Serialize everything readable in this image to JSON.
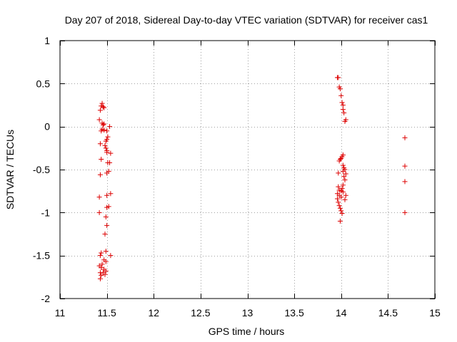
{
  "chart_data": {
    "type": "scatter",
    "title": "Day 207 of 2018, Sidereal Day-to-day VTEC variation (SDTVAR) for receiver cas1",
    "xlabel": "GPS time / hours",
    "ylabel": "SDTVAR / TECUs",
    "xlim": [
      11,
      15
    ],
    "ylim": [
      -2,
      1
    ],
    "xticks": [
      11,
      11.5,
      12,
      12.5,
      13,
      13.5,
      14,
      14.5,
      15
    ],
    "xtick_labels": [
      "11",
      "11.5",
      "12",
      "12.5",
      "13",
      "13.5",
      "14",
      "14.5",
      "15"
    ],
    "yticks": [
      -2,
      -1.5,
      -1,
      -0.5,
      0,
      0.5,
      1
    ],
    "ytick_labels": [
      "-2",
      "-1.5",
      "-1",
      "-0.5",
      "0",
      "0.5",
      "1"
    ],
    "grid": true,
    "marker": "+",
    "color": "#dd0000",
    "series": [
      {
        "name": "cas1",
        "points": [
          [
            11.45,
            0.27
          ],
          [
            11.44,
            0.24
          ],
          [
            11.46,
            0.23
          ],
          [
            11.47,
            0.22
          ],
          [
            11.43,
            0.19
          ],
          [
            11.42,
            0.08
          ],
          [
            11.45,
            0.04
          ],
          [
            11.47,
            0.03
          ],
          [
            11.46,
            0.02
          ],
          [
            11.53,
            0.0
          ],
          [
            11.45,
            -0.03
          ],
          [
            11.47,
            -0.04
          ],
          [
            11.44,
            -0.05
          ],
          [
            11.5,
            -0.05
          ],
          [
            11.51,
            -0.12
          ],
          [
            11.5,
            -0.15
          ],
          [
            11.49,
            -0.17
          ],
          [
            11.43,
            -0.2
          ],
          [
            11.48,
            -0.22
          ],
          [
            11.49,
            -0.25
          ],
          [
            11.5,
            -0.28
          ],
          [
            11.5,
            -0.3
          ],
          [
            11.54,
            -0.31
          ],
          [
            11.44,
            -0.38
          ],
          [
            11.51,
            -0.42
          ],
          [
            11.53,
            -0.42
          ],
          [
            11.52,
            -0.52
          ],
          [
            11.5,
            -0.54
          ],
          [
            11.43,
            -0.56
          ],
          [
            11.54,
            -0.78
          ],
          [
            11.5,
            -0.8
          ],
          [
            11.42,
            -0.82
          ],
          [
            11.52,
            -0.93
          ],
          [
            11.5,
            -0.94
          ],
          [
            11.42,
            -1.0
          ],
          [
            11.49,
            -1.05
          ],
          [
            11.5,
            -1.15
          ],
          [
            11.48,
            -1.25
          ],
          [
            11.49,
            -1.45
          ],
          [
            11.44,
            -1.47
          ],
          [
            11.43,
            -1.5
          ],
          [
            11.54,
            -1.5
          ],
          [
            11.47,
            -1.55
          ],
          [
            11.49,
            -1.57
          ],
          [
            11.45,
            -1.6
          ],
          [
            11.42,
            -1.62
          ],
          [
            11.44,
            -1.64
          ],
          [
            11.47,
            -1.66
          ],
          [
            11.49,
            -1.68
          ],
          [
            11.43,
            -1.7
          ],
          [
            11.46,
            -1.7
          ],
          [
            11.48,
            -1.72
          ],
          [
            11.44,
            -1.73
          ],
          [
            11.43,
            -1.77
          ],
          [
            13.97,
            0.57
          ],
          [
            13.96,
            0.57
          ],
          [
            13.98,
            0.46
          ],
          [
            13.99,
            0.44
          ],
          [
            14.0,
            0.36
          ],
          [
            14.01,
            0.28
          ],
          [
            14.02,
            0.25
          ],
          [
            14.02,
            0.2
          ],
          [
            14.03,
            0.16
          ],
          [
            14.05,
            0.08
          ],
          [
            14.04,
            0.06
          ],
          [
            14.02,
            -0.33
          ],
          [
            14.01,
            -0.35
          ],
          [
            14.0,
            -0.37
          ],
          [
            13.99,
            -0.38
          ],
          [
            13.98,
            -0.4
          ],
          [
            14.02,
            -0.45
          ],
          [
            14.03,
            -0.48
          ],
          [
            14.04,
            -0.5
          ],
          [
            14.02,
            -0.52
          ],
          [
            13.97,
            -0.54
          ],
          [
            14.05,
            -0.55
          ],
          [
            14.03,
            -0.58
          ],
          [
            14.04,
            -0.62
          ],
          [
            14.02,
            -0.68
          ],
          [
            13.97,
            -0.7
          ],
          [
            14.01,
            -0.72
          ],
          [
            13.98,
            -0.74
          ],
          [
            14.0,
            -0.75
          ],
          [
            14.02,
            -0.76
          ],
          [
            13.96,
            -0.78
          ],
          [
            13.98,
            -0.8
          ],
          [
            14.05,
            -0.8
          ],
          [
            14.0,
            -0.82
          ],
          [
            13.96,
            -0.84
          ],
          [
            14.04,
            -0.85
          ],
          [
            13.97,
            -0.88
          ],
          [
            13.98,
            -0.92
          ],
          [
            13.99,
            -0.95
          ],
          [
            14.0,
            -0.98
          ],
          [
            14.01,
            -1.01
          ],
          [
            13.99,
            -1.1
          ],
          [
            14.68,
            -0.13
          ],
          [
            14.68,
            -0.46
          ],
          [
            14.68,
            -0.64
          ],
          [
            14.68,
            -1.0
          ]
        ]
      }
    ]
  }
}
